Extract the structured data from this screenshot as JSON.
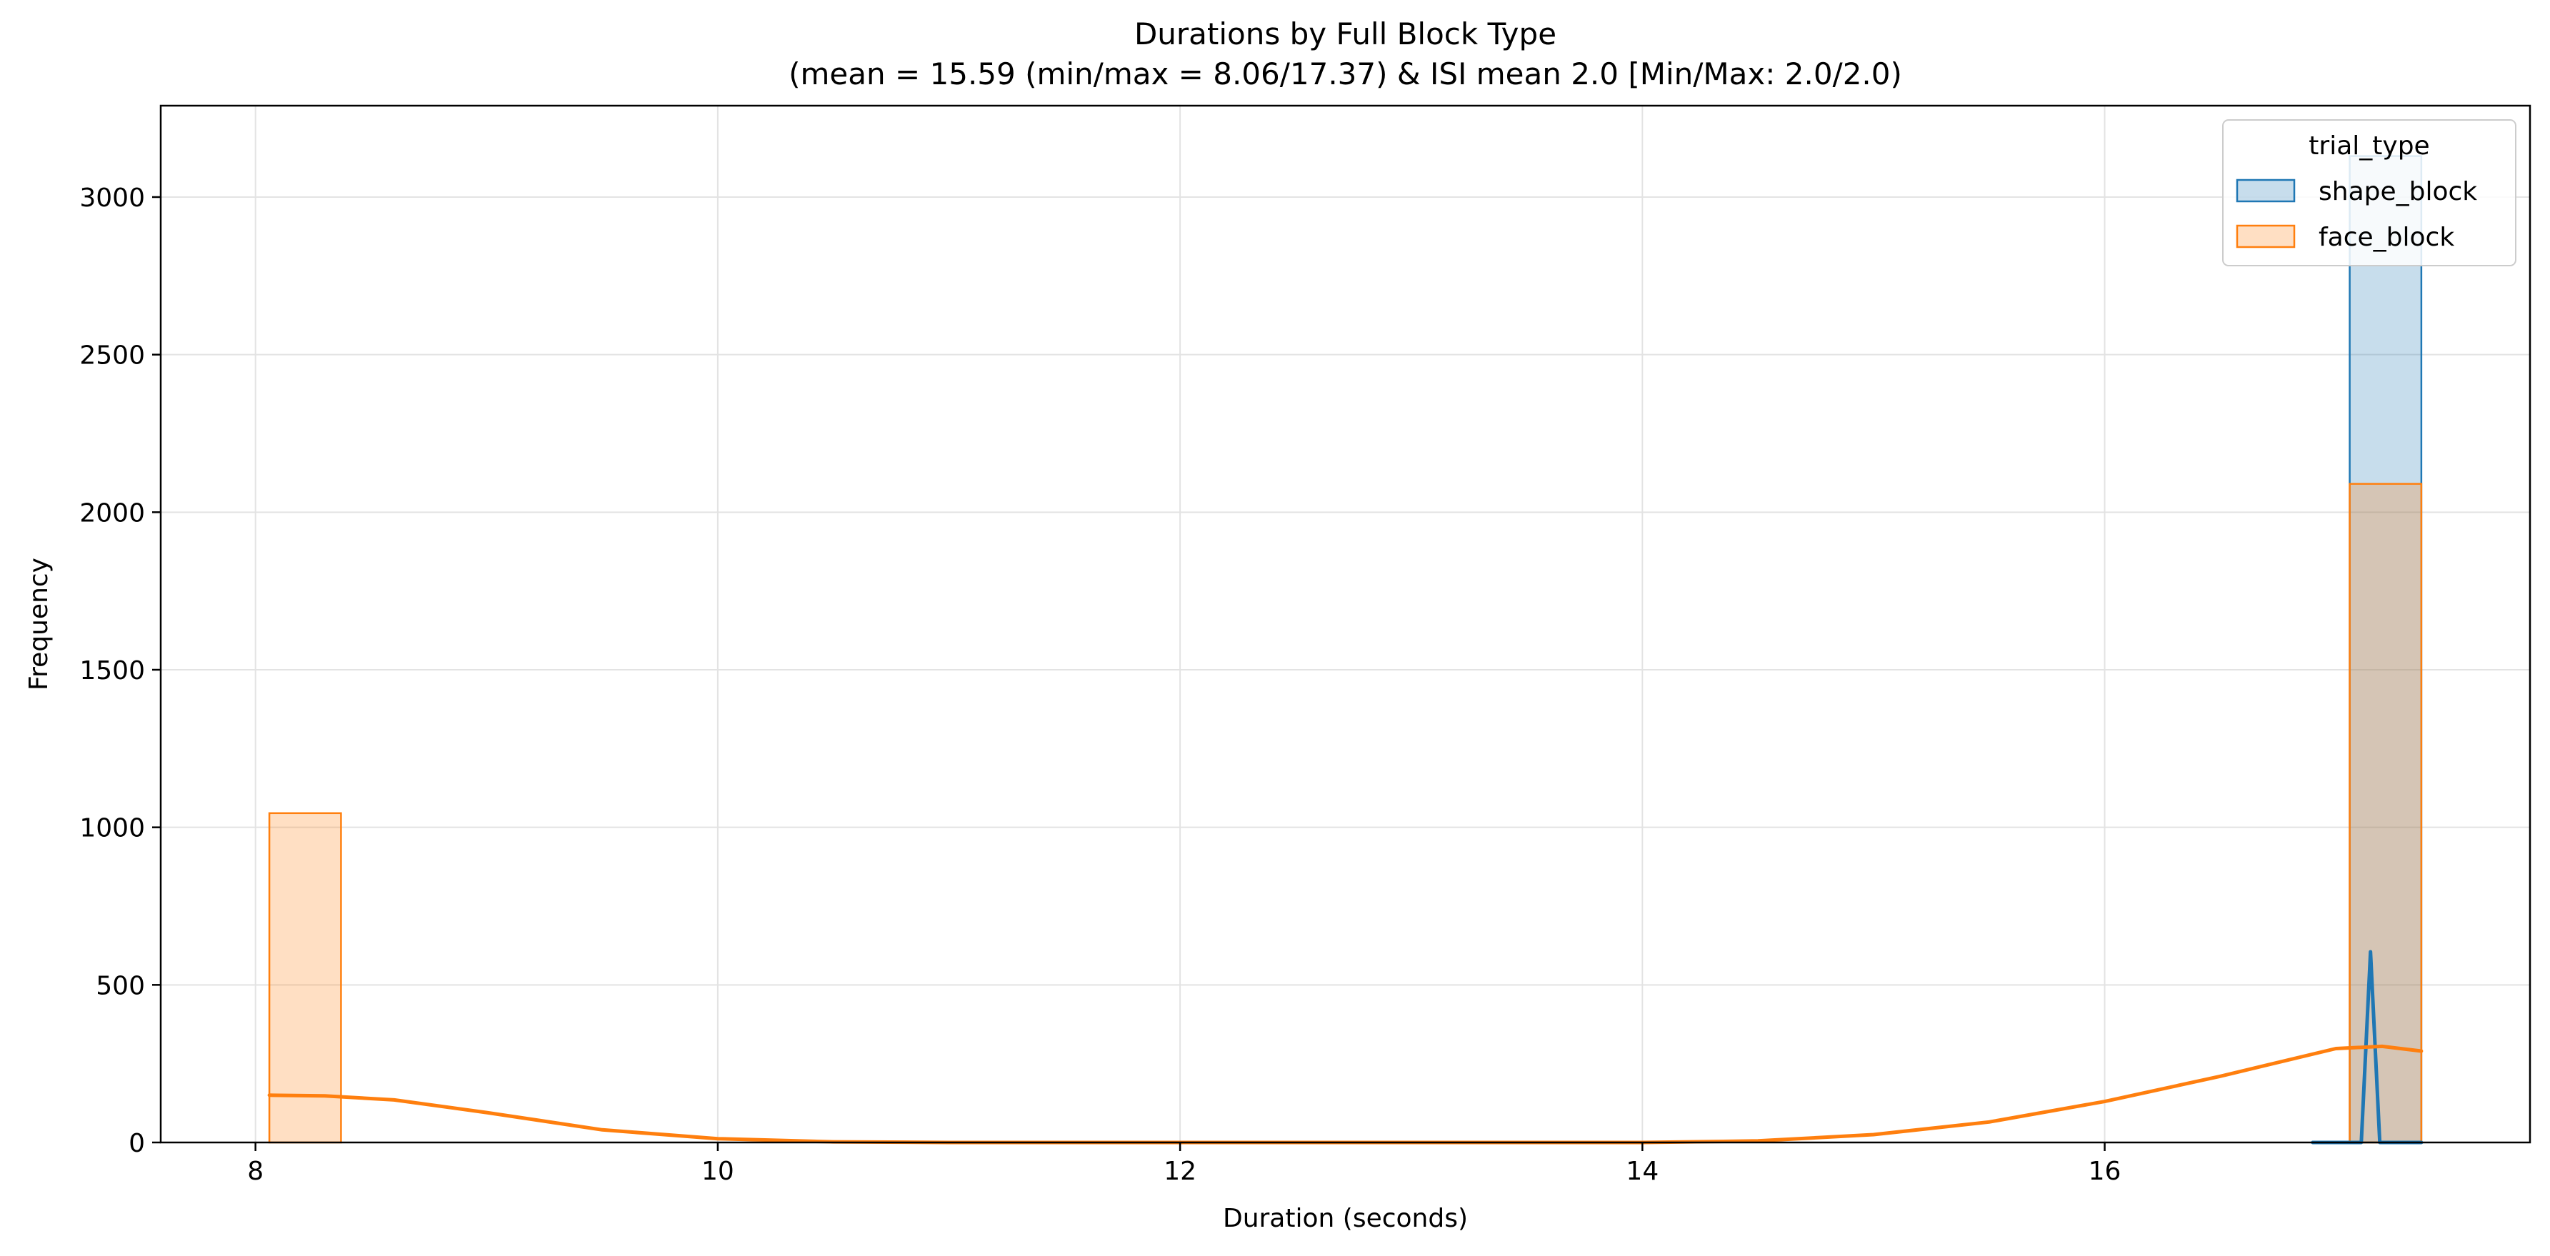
{
  "chart_data": {
    "type": "histogram",
    "title": "Durations by Full Block Type",
    "subtitle": "(mean = 15.59 (min/max = 8.06/17.37) & ISI mean 2.0 [Min/Max: 2.0/2.0)",
    "xlabel": "Duration (seconds)",
    "ylabel": "Frequency",
    "xlim": [
      7.59,
      17.84
    ],
    "ylim": [
      0,
      3290
    ],
    "xticks": [
      8,
      10,
      12,
      14,
      16
    ],
    "yticks": [
      0,
      500,
      1000,
      1500,
      2000,
      2500,
      3000
    ],
    "grid": true,
    "legend": {
      "title": "trial_type",
      "placement": "top-right",
      "entries": [
        "shape_block",
        "face_block"
      ]
    },
    "series": [
      {
        "name": "shape_block",
        "color": "#1f77b4",
        "fill": "#c6dbed",
        "bins": [
          {
            "x0": 17.06,
            "x1": 17.37,
            "count": 3130
          }
        ],
        "kde": [
          [
            16.9,
            0
          ],
          [
            17.03,
            0
          ],
          [
            17.11,
            0
          ],
          [
            17.15,
            605
          ],
          [
            17.19,
            0
          ],
          [
            17.37,
            0
          ]
        ]
      },
      {
        "name": "face_block",
        "color": "#ff7f0e",
        "fill": "#ffdbbf",
        "bins": [
          {
            "x0": 8.06,
            "x1": 8.37,
            "count": 1045
          },
          {
            "x0": 17.06,
            "x1": 17.37,
            "count": 2090
          }
        ],
        "kde": [
          [
            8.06,
            150
          ],
          [
            8.3,
            148
          ],
          [
            8.6,
            135
          ],
          [
            9.0,
            95
          ],
          [
            9.5,
            40
          ],
          [
            10.0,
            12
          ],
          [
            10.5,
            2
          ],
          [
            11.0,
            0
          ],
          [
            14.0,
            0
          ],
          [
            14.5,
            5
          ],
          [
            15.0,
            25
          ],
          [
            15.5,
            65
          ],
          [
            16.0,
            130
          ],
          [
            16.5,
            210
          ],
          [
            17.0,
            298
          ],
          [
            17.2,
            305
          ],
          [
            17.37,
            290
          ]
        ]
      }
    ]
  }
}
